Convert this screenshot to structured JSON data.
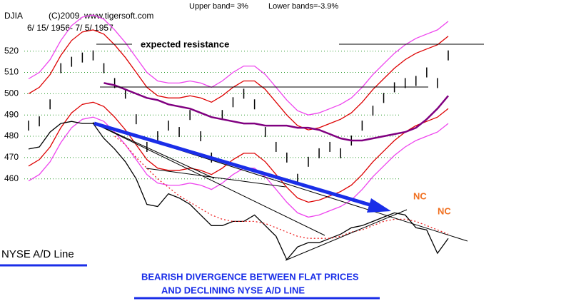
{
  "chart_data": {
    "type": "line",
    "title": "DJIA",
    "subtitle": "(C)2009, www.tigersoft.com",
    "date_range": "6/ 15/ 1956- 7/ 5/ 1957",
    "upper_band_note": "Upper band= 3%",
    "lower_band_note": "Lower bands=-3.9%",
    "annotations": [
      "expected resistance",
      "NC",
      "NC",
      "NYSE A/D Line",
      "BEARISH DIVERGENCE BETWEEN FLAT PRICES",
      "AND DECLINING NYSE A/D LINE"
    ],
    "ylim": [
      418,
      538
    ],
    "yticks": [
      460,
      470,
      480,
      490,
      500,
      510,
      520
    ],
    "grid": true,
    "series": [
      {
        "type": "bar",
        "color": "#000000",
        "values": [
          485,
          487,
          495,
          512,
          515,
          517,
          518,
          512,
          505,
          500,
          488,
          475,
          480,
          485,
          482,
          490,
          480,
          470,
          490,
          496,
          500,
          495,
          482,
          475,
          470,
          460,
          468,
          472,
          475,
          472,
          478,
          485,
          492,
          498,
          503,
          505,
          506,
          510,
          505,
          518
        ]
      },
      {
        "color": "#ee44ee",
        "values": [
          507,
          510,
          516,
          525,
          532,
          536,
          537,
          535,
          530,
          524,
          517,
          510,
          506,
          505,
          505,
          506,
          505,
          503,
          506,
          510,
          513,
          513,
          509,
          503,
          497,
          492,
          490,
          491,
          493,
          495,
          498,
          503,
          509,
          514,
          519,
          523,
          526,
          528,
          530,
          534
        ]
      },
      {
        "color": "#dd0000",
        "values": [
          500,
          503,
          509,
          518,
          525,
          529,
          530,
          528,
          523,
          517,
          510,
          503,
          499,
          498,
          498,
          499,
          498,
          496,
          499,
          503,
          506,
          506,
          502,
          496,
          490,
          485,
          483,
          484,
          486,
          488,
          491,
          496,
          502,
          507,
          512,
          516,
          519,
          521,
          523,
          527
        ]
      },
      {
        "color": "#dd0000",
        "values": [
          466,
          469,
          475,
          484,
          491,
          495,
          496,
          494,
          489,
          483,
          476,
          469,
          465,
          464,
          464,
          465,
          464,
          462,
          465,
          469,
          472,
          472,
          468,
          462,
          456,
          451,
          449,
          450,
          452,
          454,
          457,
          462,
          468,
          473,
          478,
          482,
          485,
          487,
          489,
          493
        ]
      },
      {
        "color": "#ee44ee",
        "values": [
          459,
          462,
          468,
          477,
          484,
          488,
          489,
          487,
          482,
          476,
          469,
          462,
          458,
          457,
          457,
          458,
          457,
          455,
          458,
          462,
          465,
          465,
          461,
          455,
          449,
          444,
          442,
          443,
          445,
          447,
          450,
          455,
          461,
          466,
          471,
          475,
          478,
          480,
          482,
          486
        ]
      },
      {
        "color": "#800080",
        "width": 2.5,
        "values": [
          null,
          null,
          null,
          null,
          null,
          null,
          null,
          505,
          504,
          502,
          500,
          498,
          497,
          495,
          494,
          493,
          491,
          489,
          488,
          487,
          486,
          486,
          485,
          485,
          485,
          484,
          484,
          483,
          481,
          479,
          478,
          478,
          479,
          480,
          481,
          482,
          484,
          488,
          493,
          499
        ]
      },
      {
        "color": "#000000",
        "values": [
          474,
          475,
          482,
          486,
          487,
          486,
          486,
          479,
          474,
          468,
          460,
          448,
          447,
          453,
          451,
          448,
          443,
          438,
          438,
          440,
          440,
          443,
          438,
          433,
          422,
          428,
          430,
          430,
          432,
          434,
          437,
          438,
          440,
          442,
          444,
          443,
          437,
          436,
          425,
          432
        ]
      },
      {
        "color": "#ee2222",
        "dashed": true,
        "values": [
          null,
          null,
          null,
          null,
          null,
          null,
          null,
          null,
          480,
          476,
          470,
          465,
          460,
          456,
          452,
          449,
          446,
          443,
          441,
          440,
          440,
          440,
          439,
          437,
          435,
          433,
          432,
          432,
          432,
          433,
          435,
          436,
          438,
          440,
          441,
          441,
          440,
          438,
          436,
          434
        ]
      }
    ]
  }
}
